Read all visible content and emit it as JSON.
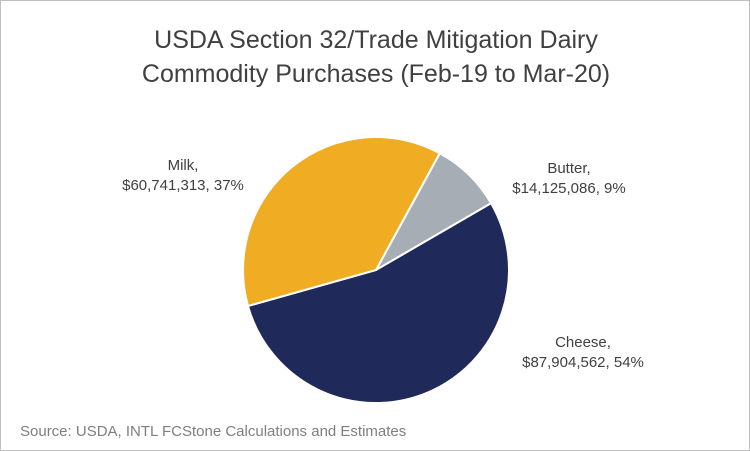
{
  "chart_data": {
    "type": "pie",
    "title_lines": [
      "USDA Section 32/Trade Mitigation Dairy",
      "Commodity Purchases (Feb-19 to Mar-20)"
    ],
    "slices": [
      {
        "name": "Butter",
        "value": 14125086,
        "percent_label": "9%",
        "value_label": "$14,125,086",
        "color": "#a7adb5"
      },
      {
        "name": "Cheese",
        "value": 87904562,
        "percent_label": "54%",
        "value_label": "$87,904,562",
        "color": "#1f2a5a"
      },
      {
        "name": "Milk",
        "value": 60741313,
        "percent_label": "37%",
        "value_label": "$60,741,313",
        "color": "#f0ac23"
      }
    ],
    "legend": "none"
  },
  "labels": {
    "milk_name": "Milk,",
    "milk_detail": "$60,741,313, 37%",
    "butter_name": "Butter,",
    "butter_detail": "$14,125,086, 9%",
    "cheese_name": "Cheese,",
    "cheese_detail": "$87,904,562, 54%"
  },
  "source": "Source: USDA, INTL FCStone Calculations and Estimates"
}
